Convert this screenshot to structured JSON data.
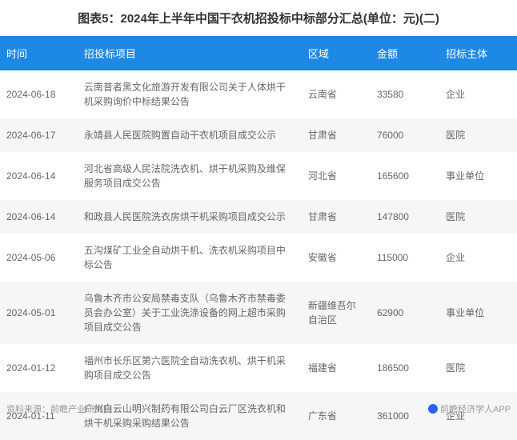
{
  "title": "图表5：2024年上半年中国干衣机招投标中标部分汇总(单位：元)(二)",
  "columns": [
    "时间",
    "招投标项目",
    "区域",
    "金额",
    "招标主体"
  ],
  "rows": [
    {
      "date": "2024-06-18",
      "project": "云南普者黑文化旅游开发有限公司关于人体烘干机采购询价中标结果公告",
      "region": "云南省",
      "amount": "33580",
      "entity": "企业"
    },
    {
      "date": "2024-06-17",
      "project": "永靖县人民医院购置自动干衣机项目成交公示",
      "region": "甘肃省",
      "amount": "76000",
      "entity": "医院"
    },
    {
      "date": "2024-06-14",
      "project": "河北省高级人民法院洗衣机、烘干机采购及维保服务项目成交公告",
      "region": "河北省",
      "amount": "165600",
      "entity": "事业单位"
    },
    {
      "date": "2024-06-14",
      "project": "和政县人民医院洗衣房烘干机采购项目成交公示",
      "region": "甘肃省",
      "amount": "147800",
      "entity": "医院"
    },
    {
      "date": "2024-05-06",
      "project": "五沟煤矿工业全自动烘干机、洗衣机采购项目中标公告",
      "region": "安徽省",
      "amount": "115000",
      "entity": "企业"
    },
    {
      "date": "2024-05-01",
      "project": "乌鲁木齐市公安局禁毒支队（乌鲁木齐市禁毒委员会办公室）关于工业洗涤设备的网上超市采购项目成交公告",
      "region": "新疆维吾尔自治区",
      "amount": "62900",
      "entity": "事业单位"
    },
    {
      "date": "2024-01-12",
      "project": "福州市长乐区第六医院全自动洗衣机、烘干机采购项目成交公告",
      "region": "福建省",
      "amount": "186500",
      "entity": "医院"
    },
    {
      "date": "2024-01-11",
      "project": "广州白云山明兴制药有限公司白云厂区洗衣机和烘干机采购采购结果公告",
      "region": "广东省",
      "amount": "361000",
      "entity": "企业"
    }
  ],
  "footer_left": "资料来源：前瞻产业研究院",
  "footer_right": "前瞻经济学人APP",
  "header_bg": "#1e88e5",
  "header_text_color": "#ffffff",
  "row_even_bg": "#f5f6f8",
  "row_odd_bg": "#ffffff"
}
